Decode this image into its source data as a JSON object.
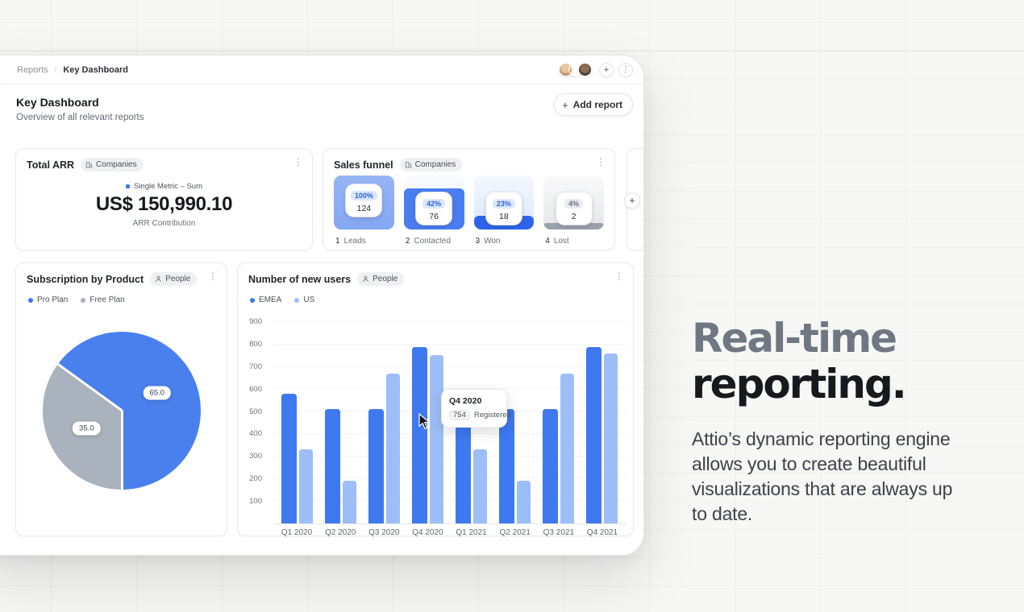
{
  "colors": {
    "accent_blue": "#3e79f0",
    "light_blue": "#9dbef7",
    "strong_blue": "#2c65ec",
    "funnel_light_blue": "#8cadf4",
    "funnel_mid_blue": "#4a7df0",
    "pie_blue": "#4a80ee",
    "pie_gray": "#a9b2bd",
    "fill_gray": "#99a1ab"
  },
  "window": {
    "breadcrumb": [
      "Reports",
      "Key Dashboard"
    ],
    "topbar": {
      "avatars": [
        "teammate-1",
        "teammate-2",
        "teammate-3"
      ],
      "plus_label": "+",
      "menu_label": "⋮"
    },
    "header": {
      "title": "Key Dashboard",
      "subtitle": "Overview of all relevant reports",
      "add_button": "Add report",
      "add_icon": "+"
    },
    "cards": {
      "total_arr": {
        "title": "Total ARR",
        "badge": "Companies",
        "metric_label": "Single Metric – Sum",
        "value": "US$ 150,990.10",
        "caption": "ARR Contribution"
      },
      "sales_funnel": {
        "title": "Sales funnel",
        "badge": "Companies",
        "stages": [
          {
            "num": "1",
            "name": "Leads",
            "percent": "100%",
            "count": "124",
            "fill": 1.0,
            "style": "v-light"
          },
          {
            "num": "2",
            "name": "Contacted",
            "percent": "42%",
            "count": "76",
            "fill": 0.76,
            "style": "v-mid"
          },
          {
            "num": "3",
            "name": "Won",
            "percent": "23%",
            "count": "18",
            "fill": 0.25,
            "style": "v-strong"
          },
          {
            "num": "4",
            "name": "Lost",
            "percent": "4%",
            "count": "2",
            "fill": 0.12,
            "style": "v-gray"
          }
        ]
      },
      "subscription": {
        "title": "Subscription by Product",
        "badge": "People",
        "legend": [
          {
            "label": "Pro Plan",
            "color": "#3e79f0"
          },
          {
            "label": "Free Plan",
            "color": "#a9b2bd"
          }
        ],
        "slices": [
          {
            "name": "Free Plan",
            "label": "35.0",
            "value": 35,
            "color": "#a9b2bd"
          },
          {
            "name": "Pro Plan",
            "label": "65.0",
            "value": 65,
            "color": "#4a80ee"
          }
        ],
        "start_angle_deg": 180
      },
      "new_users": {
        "title": "Number of new users",
        "badge": "People",
        "legend": [
          {
            "label": "EMEA",
            "color": "#3e79f0"
          },
          {
            "label": "US",
            "color": "#9dbef7"
          }
        ],
        "y_max": 900,
        "y_ticks": [
          900,
          800,
          700,
          600,
          500,
          400,
          300,
          200,
          100
        ],
        "categories": [
          "Q1 2020",
          "Q2 2020",
          "Q3 2020",
          "Q4 2020",
          "Q1 2021",
          "Q2 2021",
          "Q3 2021",
          "Q4 2021"
        ],
        "series": [
          {
            "name": "EMEA",
            "color": "#3e79f0",
            "values": [
              580,
              510,
              510,
              790,
              440,
              510,
              510,
              790
            ]
          },
          {
            "name": "US",
            "color": "#9dbef7",
            "values": [
              330,
              190,
              670,
              754,
              330,
              190,
              670,
              760
            ]
          }
        ],
        "tooltip": {
          "title": "Q4 2020",
          "value": "754",
          "label": "Registered"
        }
      }
    }
  },
  "hero": {
    "heading_gray": "Real-time",
    "heading_dark": "reporting.",
    "body": "Attio’s dynamic reporting engine allows you to create beautiful visualizations that are always up to date."
  },
  "chart_data": [
    {
      "type": "bar",
      "title": "Sales funnel",
      "categories": [
        "Leads",
        "Contacted",
        "Won",
        "Lost"
      ],
      "values": [
        124,
        76,
        18,
        2
      ],
      "percents": [
        100,
        42,
        23,
        4
      ],
      "note": "funnel-style stage chart"
    },
    {
      "type": "pie",
      "title": "Subscription by Product",
      "labels": [
        "Pro Plan",
        "Free Plan"
      ],
      "values": [
        65.0,
        35.0
      ],
      "legend_position": "top-left"
    },
    {
      "type": "bar",
      "title": "Number of new users",
      "categories": [
        "Q1 2020",
        "Q2 2020",
        "Q3 2020",
        "Q4 2020",
        "Q1 2021",
        "Q2 2021",
        "Q3 2021",
        "Q4 2021"
      ],
      "series": [
        {
          "name": "EMEA",
          "values": [
            580,
            510,
            510,
            790,
            440,
            510,
            510,
            790
          ]
        },
        {
          "name": "US",
          "values": [
            330,
            190,
            670,
            754,
            330,
            190,
            670,
            760
          ]
        }
      ],
      "ylim": [
        0,
        900
      ],
      "ytick_step": 100,
      "grid": true,
      "legend_position": "top-left",
      "tooltip": {
        "category": "Q4 2020",
        "value": 754,
        "series_label": "Registered"
      }
    }
  ]
}
